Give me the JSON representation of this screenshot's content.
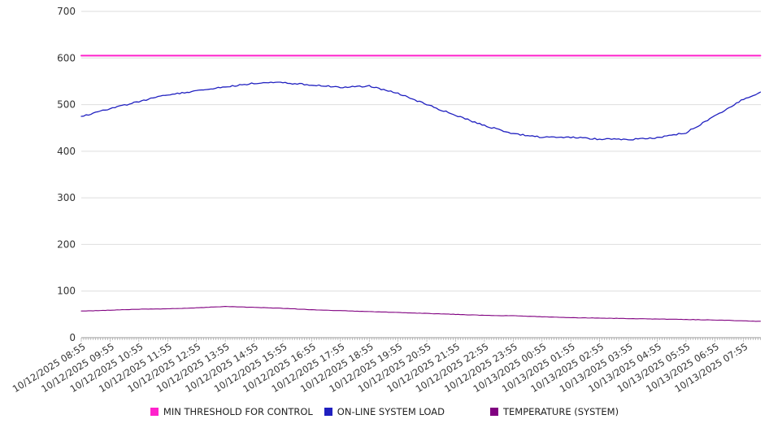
{
  "page": {
    "background": "#ffffff"
  },
  "chart_data": {
    "type": "line",
    "title": "",
    "xlabel": "",
    "ylabel": "",
    "ylim": [
      0,
      700
    ],
    "yticks": [
      0,
      100,
      200,
      300,
      400,
      500,
      600,
      700
    ],
    "grid": true,
    "legend_position": "bottom",
    "x_tick_interval_minutes": 5,
    "span_hours": 23.6,
    "x_labels": [
      "10/12/2025 08:55",
      "10/12/2025 09:55",
      "10/12/2025 10:55",
      "10/12/2025 11:55",
      "10/12/2025 12:55",
      "10/12/2025 13:55",
      "10/12/2025 14:55",
      "10/12/2025 15:55",
      "10/12/2025 16:55",
      "10/12/2025 17:55",
      "10/12/2025 18:55",
      "10/12/2025 19:55",
      "10/12/2025 20:55",
      "10/12/2025 21:55",
      "10/12/2025 22:55",
      "10/12/2025 23:55",
      "10/13/2025 00:55",
      "10/13/2025 01:55",
      "10/13/2025 02:55",
      "10/13/2025 03:55",
      "10/13/2025 04:55",
      "10/13/2025 05:55",
      "10/13/2025 06:55",
      "10/13/2025 07:55"
    ],
    "series": [
      {
        "name": "MIN THRESHOLD FOR CONTROL",
        "color": "#ff22cc",
        "width": 2,
        "jitter": 0,
        "values": [
          605,
          605,
          605,
          605,
          605,
          605,
          605,
          605,
          605,
          605,
          605,
          605,
          605,
          605,
          605,
          605,
          605,
          605,
          605,
          605,
          605,
          605,
          605,
          605,
          605
        ]
      },
      {
        "name": "ON-LINE SYSTEM LOAD",
        "color": "#2020c0",
        "width": 1.3,
        "jitter": 1.6,
        "values": [
          475,
          491,
          507,
          521,
          529,
          538,
          546,
          547,
          542,
          537,
          540,
          524,
          500,
          477,
          455,
          438,
          430,
          430,
          426,
          425,
          429,
          440,
          475,
          512,
          527
        ]
      },
      {
        "name": "TEMPERATURE (SYSTEM)",
        "color": "#800080",
        "width": 1.1,
        "jitter": 0.35,
        "values": [
          57,
          59,
          61,
          62,
          64,
          67,
          65,
          63,
          60,
          58,
          56,
          54,
          52,
          50,
          48,
          47,
          45,
          43,
          42,
          41,
          40,
          39,
          38,
          36,
          35
        ]
      }
    ]
  }
}
